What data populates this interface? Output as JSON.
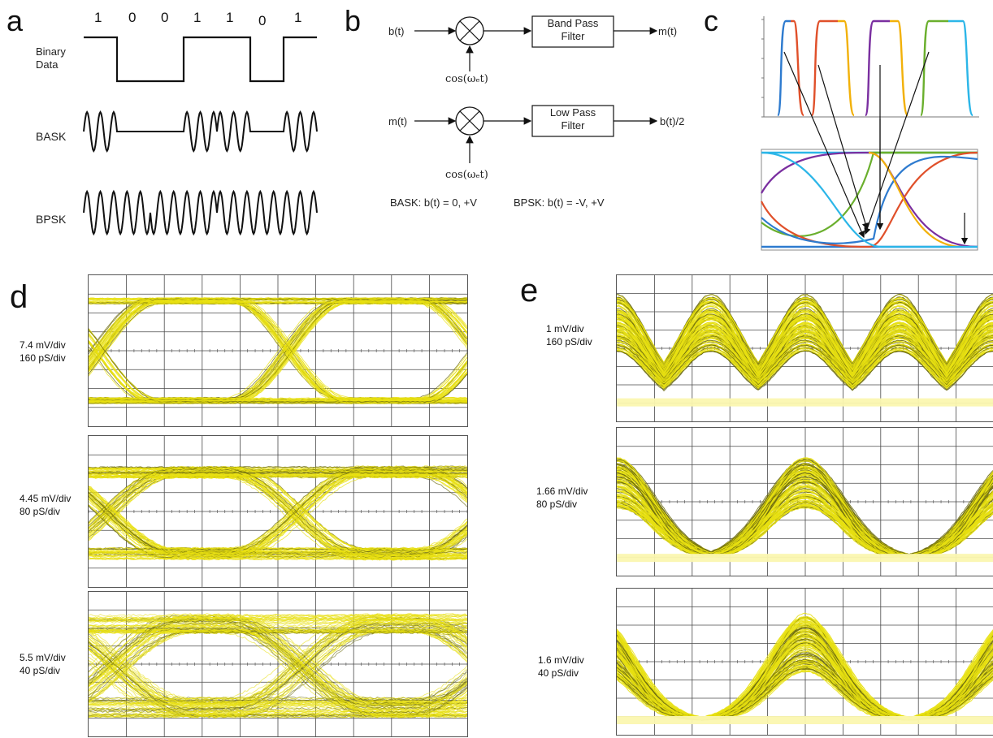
{
  "panels": {
    "a": {
      "letter": "a",
      "bits": [
        "1",
        "0",
        "0",
        "1",
        "1",
        "0",
        "1"
      ],
      "bit_values": [
        1,
        0,
        0,
        1,
        1,
        0,
        1
      ],
      "row_labels": {
        "binary": "Binary\nData",
        "bask": "BASK",
        "bpsk": "BPSK"
      }
    },
    "b": {
      "letter": "b",
      "top": {
        "input": "b(t)",
        "filter": "Band Pass\nFilter",
        "output": "m(t)",
        "carrier": "cos(ωₑt)"
      },
      "bottom": {
        "input": "m(t)",
        "filter": "Low Pass\nFilter",
        "output": "b(t)/2",
        "carrier": "cos(ωₑt)"
      },
      "note_bask": "BASK: b(t) = 0, +V",
      "note_bpsk": "BPSK: b(t) = -V, +V"
    },
    "c": {
      "letter": "c",
      "colors": [
        "#2e7bcf",
        "#e0502a",
        "#f2b10a",
        "#7a2fa0",
        "#6aaf2d",
        "#2cb6e8"
      ]
    },
    "d": {
      "letter": "d",
      "scopes": [
        {
          "label": "7.4 mV/div\n160 pS/div"
        },
        {
          "label": "4.45 mV/div\n80 pS/div"
        },
        {
          "label": "5.5 mV/div\n40 pS/div"
        }
      ]
    },
    "e": {
      "letter": "e",
      "scopes": [
        {
          "label": "1 mV/div\n160 pS/div"
        },
        {
          "label": "1.66 mV/div\n80 pS/div"
        },
        {
          "label": "1.6 mV/div\n40 pS/div"
        }
      ]
    },
    "trace_color": "#e8e010",
    "trace_dark": "#6b6a10"
  }
}
